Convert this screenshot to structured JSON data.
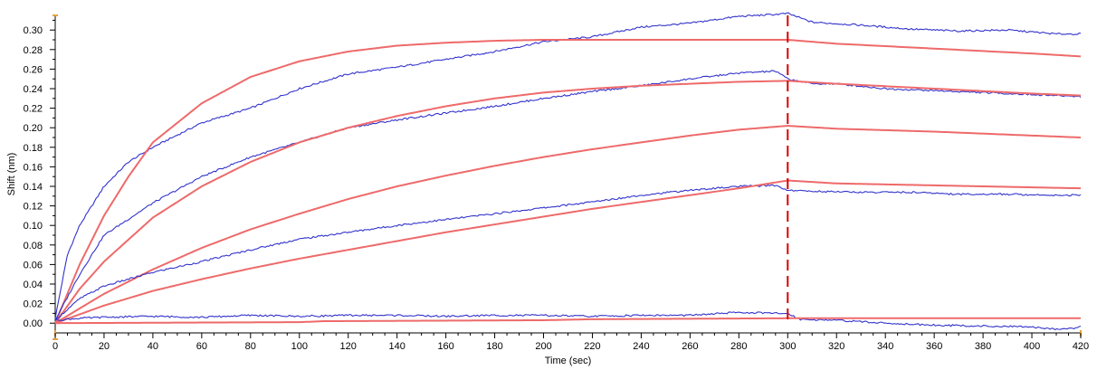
{
  "chart_data": {
    "type": "line",
    "title": "",
    "xlabel": "Time (sec)",
    "ylabel": "Shift (nm)",
    "xlim": [
      0,
      420
    ],
    "ylim": [
      -0.01,
      0.315
    ],
    "x_ticks": [
      0,
      20,
      40,
      60,
      80,
      100,
      120,
      140,
      160,
      180,
      200,
      220,
      240,
      260,
      280,
      300,
      320,
      340,
      360,
      380,
      400,
      420
    ],
    "x_tick_labels": [
      "0",
      "20",
      "40",
      "60",
      "80",
      "100",
      "120",
      "140",
      "160",
      "180",
      "200",
      "220",
      "240",
      "260",
      "280",
      "300",
      "320",
      "340",
      "360",
      "380",
      "400",
      "420"
    ],
    "y_ticks": [
      0.0,
      0.02,
      0.04,
      0.06,
      0.08,
      0.1,
      0.12,
      0.14,
      0.16,
      0.18,
      0.2,
      0.22,
      0.24,
      0.26,
      0.28,
      0.3
    ],
    "y_tick_labels": [
      "0.00",
      "0.02",
      "0.04",
      "0.06",
      "0.08",
      "0.10",
      "0.12",
      "0.14",
      "0.16",
      "0.18",
      "0.20",
      "0.22",
      "0.24",
      "0.26",
      "0.28",
      "0.30"
    ],
    "grid": false,
    "legend": "none",
    "colors": {
      "measured": "#3333cc",
      "fit": "#ee6a6a",
      "marker": "#dd0000",
      "axis_tick": "#e6a23c"
    },
    "vertical_marker_x": 300,
    "series": [
      {
        "kind": "measured",
        "x": [
          0,
          5,
          10,
          20,
          30,
          40,
          60,
          80,
          100,
          120,
          140,
          160,
          180,
          200,
          220,
          240,
          260,
          280,
          295,
          300,
          310,
          330,
          350,
          370,
          390,
          410,
          420
        ],
        "y": [
          0.005,
          0.07,
          0.1,
          0.14,
          0.165,
          0.18,
          0.205,
          0.22,
          0.24,
          0.255,
          0.262,
          0.27,
          0.278,
          0.288,
          0.293,
          0.303,
          0.307,
          0.314,
          0.316,
          0.317,
          0.308,
          0.305,
          0.301,
          0.299,
          0.3,
          0.296,
          0.296
        ]
      },
      {
        "kind": "fit",
        "x": [
          0,
          10,
          20,
          30,
          40,
          60,
          80,
          100,
          120,
          140,
          160,
          180,
          200,
          240,
          280,
          300,
          320,
          360,
          400,
          420
        ],
        "y": [
          0.0,
          0.06,
          0.11,
          0.15,
          0.185,
          0.225,
          0.252,
          0.268,
          0.278,
          0.284,
          0.287,
          0.289,
          0.29,
          0.29,
          0.29,
          0.29,
          0.286,
          0.281,
          0.276,
          0.273
        ]
      },
      {
        "kind": "measured",
        "x": [
          0,
          10,
          20,
          40,
          60,
          80,
          100,
          120,
          140,
          160,
          180,
          200,
          220,
          240,
          260,
          280,
          295,
          300,
          310,
          320,
          340,
          360,
          380,
          400,
          420
        ],
        "y": [
          0.003,
          0.05,
          0.09,
          0.123,
          0.15,
          0.17,
          0.185,
          0.2,
          0.208,
          0.215,
          0.222,
          0.23,
          0.237,
          0.243,
          0.25,
          0.256,
          0.258,
          0.25,
          0.245,
          0.245,
          0.24,
          0.238,
          0.236,
          0.234,
          0.232
        ]
      },
      {
        "kind": "fit",
        "x": [
          0,
          10,
          20,
          40,
          60,
          80,
          100,
          120,
          140,
          160,
          180,
          200,
          220,
          240,
          260,
          280,
          300,
          320,
          360,
          400,
          420
        ],
        "y": [
          0.0,
          0.035,
          0.063,
          0.108,
          0.14,
          0.165,
          0.185,
          0.2,
          0.212,
          0.222,
          0.23,
          0.236,
          0.24,
          0.243,
          0.245,
          0.247,
          0.248,
          0.245,
          0.24,
          0.235,
          0.233
        ]
      },
      {
        "kind": "fit",
        "x": [
          0,
          20,
          40,
          60,
          80,
          100,
          120,
          140,
          160,
          180,
          200,
          220,
          240,
          260,
          280,
          300,
          320,
          360,
          400,
          420
        ],
        "y": [
          0.0,
          0.03,
          0.055,
          0.077,
          0.096,
          0.112,
          0.127,
          0.14,
          0.151,
          0.161,
          0.17,
          0.178,
          0.185,
          0.192,
          0.198,
          0.202,
          0.199,
          0.196,
          0.192,
          0.19
        ]
      },
      {
        "kind": "measured",
        "x": [
          0,
          10,
          20,
          30,
          40,
          60,
          80,
          100,
          120,
          140,
          160,
          180,
          200,
          220,
          240,
          260,
          280,
          295,
          300,
          310,
          330,
          350,
          370,
          390,
          410,
          420
        ],
        "y": [
          0.003,
          0.025,
          0.038,
          0.045,
          0.052,
          0.063,
          0.075,
          0.086,
          0.093,
          0.1,
          0.106,
          0.112,
          0.118,
          0.124,
          0.131,
          0.136,
          0.14,
          0.141,
          0.136,
          0.135,
          0.134,
          0.134,
          0.132,
          0.132,
          0.131,
          0.131
        ]
      },
      {
        "kind": "fit",
        "x": [
          0,
          20,
          40,
          60,
          80,
          100,
          120,
          140,
          160,
          180,
          200,
          220,
          240,
          260,
          280,
          300,
          320,
          360,
          400,
          420
        ],
        "y": [
          0.0,
          0.018,
          0.033,
          0.045,
          0.056,
          0.066,
          0.075,
          0.084,
          0.093,
          0.101,
          0.109,
          0.117,
          0.124,
          0.131,
          0.138,
          0.146,
          0.143,
          0.141,
          0.139,
          0.138
        ]
      },
      {
        "kind": "measured",
        "x": [
          0,
          10,
          20,
          40,
          60,
          80,
          100,
          120,
          140,
          160,
          180,
          200,
          220,
          240,
          260,
          280,
          295,
          300,
          305,
          320,
          340,
          360,
          380,
          400,
          410,
          418,
          420
        ],
        "y": [
          0.003,
          0.005,
          0.006,
          0.007,
          0.006,
          0.008,
          0.007,
          0.008,
          0.008,
          0.007,
          0.008,
          0.008,
          0.007,
          0.008,
          0.008,
          0.011,
          0.01,
          0.01,
          0.004,
          0.003,
          0.0,
          -0.002,
          -0.003,
          -0.004,
          -0.006,
          -0.005,
          -0.003
        ]
      },
      {
        "kind": "fit",
        "x": [
          0,
          100,
          110,
          200,
          220,
          300,
          310,
          420
        ],
        "y": [
          0.0,
          0.001,
          0.002,
          0.003,
          0.004,
          0.005,
          0.005,
          0.005
        ]
      }
    ]
  }
}
